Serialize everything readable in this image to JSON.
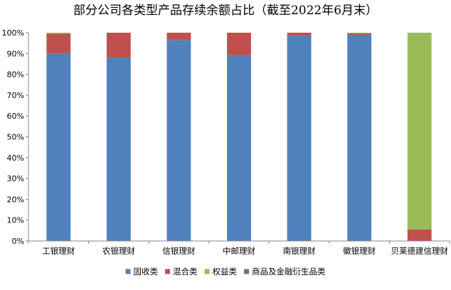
{
  "chart_data": {
    "type": "bar",
    "stacked": "percent",
    "title": "部分公司各类型产品存续余额占比（截至2022年6月末）",
    "xlabel": "",
    "ylabel": "",
    "ylim": [
      0,
      100
    ],
    "y_ticks": [
      "0%",
      "10%",
      "20%",
      "30%",
      "40%",
      "50%",
      "60%",
      "70%",
      "80%",
      "90%",
      "100%"
    ],
    "grid": false,
    "legend_position": "bottom",
    "categories": [
      "工银理财",
      "农银理财",
      "信银理财",
      "中邮理财",
      "南银理财",
      "徽银理财",
      "贝莱德建信理财"
    ],
    "series": [
      {
        "name": "固收类",
        "color": "#4F81BD",
        "values": [
          90.0,
          88.0,
          96.5,
          89.0,
          98.5,
          99.0,
          0.0
        ]
      },
      {
        "name": "混合类",
        "color": "#C0504D",
        "values": [
          9.5,
          12.0,
          3.5,
          11.0,
          1.5,
          0.7,
          5.5
        ]
      },
      {
        "name": "权益类",
        "color": "#9BBB59",
        "values": [
          0.5,
          0.0,
          0.0,
          0.0,
          0.0,
          0.3,
          94.5
        ]
      },
      {
        "name": "商品及金融衍生品类",
        "color": "#8064A2",
        "values": [
          0.0,
          0.0,
          0.0,
          0.0,
          0.0,
          0.0,
          0.0
        ]
      }
    ]
  }
}
